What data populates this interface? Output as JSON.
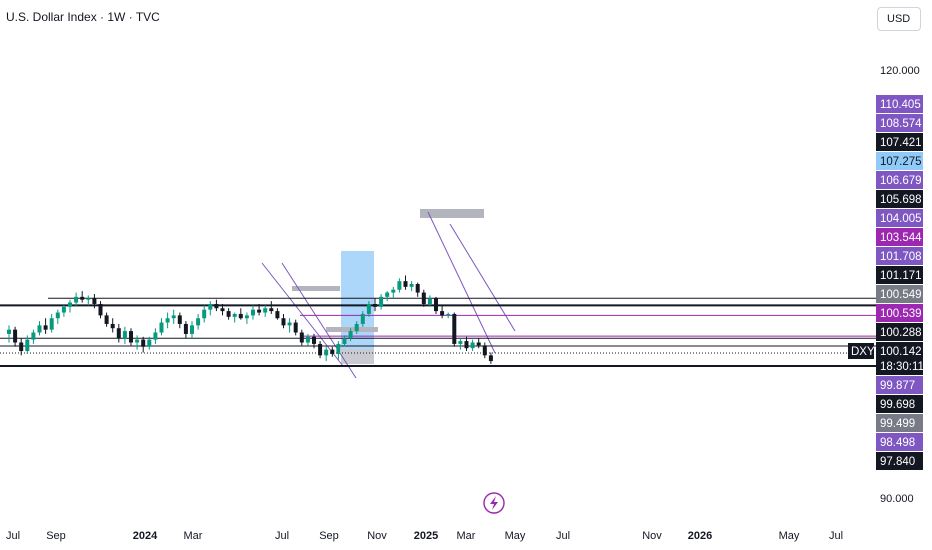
{
  "header": {
    "title": "U.S. Dollar Index · 1W · TVC",
    "currency": "USD"
  },
  "colors": {
    "up": "#089981",
    "down": "#131722",
    "purple": "#7e57c2",
    "magenta": "#9c27b0",
    "blue_zone": "#90caf9",
    "grey_zone": "#b2b5be"
  },
  "chart_data": {
    "type": "candlestick",
    "title": "U.S. Dollar Index · 1W · TVC",
    "symbol": "DXY",
    "x_ticks": [
      "Jul",
      "Sep",
      "2024",
      "Mar",
      "Jul",
      "Sep",
      "Nov",
      "2025",
      "Mar",
      "May",
      "Jul",
      "Nov",
      "2026",
      "May",
      "Jul"
    ],
    "y_ticks": [
      120.0,
      90.0
    ],
    "y_ticks_text": [
      "120.000",
      "90.000"
    ],
    "ylim": [
      89.0,
      121.5
    ],
    "price_tags": [
      {
        "text": "110.405",
        "value": 110.405,
        "style": "purple"
      },
      {
        "text": "108.574",
        "value": 108.574,
        "style": "purple"
      },
      {
        "text": "107.421",
        "value": 107.421,
        "style": "black"
      },
      {
        "text": "107.275",
        "value": 107.275,
        "style": "blue"
      },
      {
        "text": "106.679",
        "value": 106.679,
        "style": "purple"
      },
      {
        "text": "105.698",
        "value": 105.698,
        "style": "black"
      },
      {
        "text": "104.005",
        "value": 104.005,
        "style": "purple"
      },
      {
        "text": "103.544",
        "value": 103.544,
        "style": "magenta"
      },
      {
        "text": "101.708",
        "value": 101.708,
        "style": "purple"
      },
      {
        "text": "101.171",
        "value": 101.171,
        "style": "black"
      },
      {
        "text": "100.549",
        "value": 100.549,
        "style": "grey"
      },
      {
        "text": "100.539",
        "value": 100.539,
        "style": "magenta"
      },
      {
        "text": "100.288",
        "value": 100.288,
        "style": "black"
      },
      {
        "text": "100.142",
        "value": 100.142,
        "style": "black"
      },
      {
        "text": "99.877",
        "value": 99.877,
        "style": "purple"
      },
      {
        "text": "99.698",
        "value": 99.698,
        "style": "black"
      },
      {
        "text": "99.499",
        "value": 99.499,
        "style": "grey"
      },
      {
        "text": "98.498",
        "value": 98.498,
        "style": "purple"
      },
      {
        "text": "97.840",
        "value": 97.84,
        "style": "black"
      }
    ],
    "symbol_label": "DXY",
    "countdown": "18:30:11",
    "horizontal_levels": [
      {
        "value": 104.0,
        "color": "#131722",
        "weight": "thin"
      },
      {
        "value": 103.5,
        "color": "#131722",
        "weight": "bold"
      },
      {
        "value": 102.8,
        "color": "#9c27b0",
        "weight": "thin"
      },
      {
        "value": 101.35,
        "color": "#9c27b0",
        "weight": "thin"
      },
      {
        "value": 101.2,
        "color": "#131722",
        "weight": "thin"
      },
      {
        "value": 100.65,
        "color": "#131722",
        "weight": "thin"
      },
      {
        "value": 99.25,
        "color": "#131722",
        "weight": "bold"
      }
    ],
    "candles": [
      [
        101.5,
        102.1,
        100.9,
        101.8
      ],
      [
        101.8,
        102.0,
        100.6,
        100.9
      ],
      [
        100.9,
        101.2,
        100.0,
        100.3
      ],
      [
        100.3,
        101.4,
        100.1,
        101.1
      ],
      [
        101.1,
        101.8,
        100.8,
        101.6
      ],
      [
        101.6,
        102.4,
        101.4,
        102.1
      ],
      [
        102.1,
        102.6,
        101.5,
        101.8
      ],
      [
        101.8,
        102.9,
        101.6,
        102.6
      ],
      [
        102.6,
        103.2,
        102.2,
        103.0
      ],
      [
        103.0,
        103.6,
        102.7,
        103.4
      ],
      [
        103.4,
        103.9,
        103.0,
        103.7
      ],
      [
        103.7,
        104.4,
        103.4,
        104.1
      ],
      [
        104.1,
        104.5,
        103.7,
        103.9
      ],
      [
        103.9,
        104.2,
        103.5,
        104.0
      ],
      [
        104.0,
        104.3,
        103.3,
        103.6
      ],
      [
        103.6,
        103.8,
        102.6,
        102.8
      ],
      [
        102.8,
        103.0,
        102.0,
        102.2
      ],
      [
        102.2,
        102.6,
        101.6,
        101.9
      ],
      [
        101.9,
        102.2,
        100.9,
        101.2
      ],
      [
        101.2,
        102.0,
        100.8,
        101.7
      ],
      [
        101.7,
        101.9,
        100.7,
        100.9
      ],
      [
        100.9,
        101.4,
        100.4,
        101.1
      ],
      [
        101.1,
        101.3,
        100.2,
        100.6
      ],
      [
        100.6,
        101.3,
        100.4,
        101.1
      ],
      [
        101.1,
        101.9,
        100.8,
        101.6
      ],
      [
        101.6,
        102.6,
        101.4,
        102.3
      ],
      [
        102.3,
        103.0,
        101.9,
        102.6
      ],
      [
        102.6,
        103.2,
        102.2,
        102.8
      ],
      [
        102.8,
        103.0,
        101.9,
        102.2
      ],
      [
        102.2,
        102.4,
        101.2,
        101.5
      ],
      [
        101.5,
        102.4,
        101.2,
        102.1
      ],
      [
        102.1,
        102.9,
        101.8,
        102.6
      ],
      [
        102.6,
        103.5,
        102.3,
        103.2
      ],
      [
        103.2,
        103.8,
        102.8,
        103.6
      ],
      [
        103.6,
        103.9,
        103.1,
        103.3
      ],
      [
        103.3,
        103.6,
        102.8,
        103.1
      ],
      [
        103.1,
        103.3,
        102.5,
        102.7
      ],
      [
        102.7,
        103.0,
        102.3,
        102.9
      ],
      [
        102.9,
        103.3,
        102.5,
        102.6
      ],
      [
        102.6,
        103.0,
        102.2,
        102.8
      ],
      [
        102.8,
        103.5,
        102.5,
        103.2
      ],
      [
        103.2,
        103.6,
        102.8,
        103.0
      ],
      [
        103.0,
        103.5,
        102.7,
        103.3
      ],
      [
        103.3,
        103.8,
        102.9,
        103.1
      ],
      [
        103.1,
        103.3,
        102.5,
        102.6
      ],
      [
        102.6,
        102.9,
        101.9,
        102.1
      ],
      [
        102.1,
        102.6,
        101.6,
        102.3
      ],
      [
        102.3,
        102.5,
        101.4,
        101.6
      ],
      [
        101.6,
        101.8,
        100.7,
        100.9
      ],
      [
        100.9,
        101.5,
        100.7,
        101.3
      ],
      [
        101.3,
        101.5,
        100.5,
        100.8
      ],
      [
        100.8,
        101.0,
        99.8,
        100.0
      ],
      [
        100.0,
        100.6,
        99.6,
        100.4
      ],
      [
        100.4,
        100.6,
        99.9,
        100.1
      ],
      [
        100.1,
        101.0,
        99.7,
        100.8
      ],
      [
        100.8,
        101.4,
        100.6,
        101.2
      ],
      [
        101.2,
        101.9,
        101.0,
        101.7
      ],
      [
        101.7,
        102.4,
        101.5,
        102.2
      ],
      [
        102.2,
        103.1,
        102.0,
        102.9
      ],
      [
        102.9,
        103.8,
        102.7,
        103.6
      ],
      [
        103.6,
        104.0,
        103.1,
        103.4
      ],
      [
        103.4,
        104.3,
        103.2,
        104.1
      ],
      [
        104.1,
        104.5,
        103.8,
        104.4
      ],
      [
        104.4,
        104.8,
        104.0,
        104.6
      ],
      [
        104.6,
        105.4,
        104.4,
        105.2
      ],
      [
        105.2,
        105.6,
        104.6,
        104.8
      ],
      [
        104.8,
        105.2,
        104.5,
        105.0
      ],
      [
        105.0,
        105.1,
        104.1,
        104.4
      ],
      [
        104.4,
        104.6,
        103.4,
        103.6
      ],
      [
        103.6,
        104.2,
        103.4,
        104.0
      ],
      [
        104.0,
        104.1,
        102.9,
        103.1
      ],
      [
        103.1,
        103.5,
        102.6,
        102.8
      ],
      [
        102.8,
        103.0,
        102.6,
        102.9
      ],
      [
        102.9,
        103.0,
        100.6,
        100.8
      ],
      [
        100.8,
        101.2,
        100.4,
        101.0
      ],
      [
        101.0,
        101.3,
        100.3,
        100.5
      ],
      [
        100.5,
        101.1,
        100.3,
        100.9
      ],
      [
        100.9,
        101.2,
        100.5,
        100.7
      ],
      [
        100.7,
        100.9,
        99.8,
        100.0
      ],
      [
        100.0,
        100.2,
        99.4,
        99.6
      ]
    ]
  }
}
